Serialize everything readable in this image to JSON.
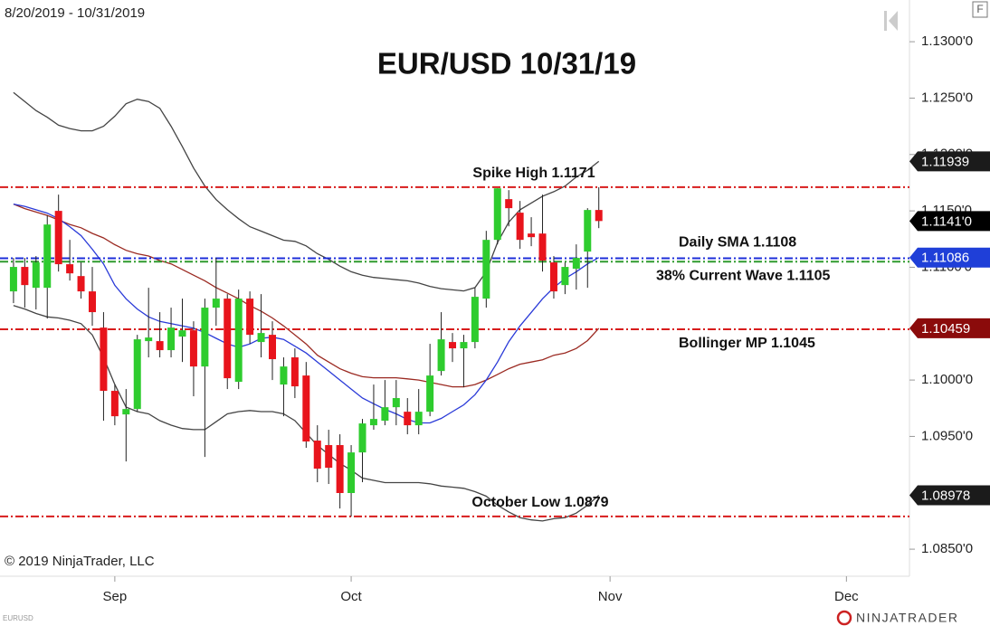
{
  "chart_data": {
    "type": "candlestick",
    "title": "EUR/USD 10/31/19",
    "date_range": "8/20/2019 - 10/31/2019",
    "copyright": "© 2019 NinjaTrader, LLC",
    "symbol": "EURUSD",
    "brand": "NINJATRADER",
    "corner_button": "F",
    "up_color": "#2ecc2e",
    "down_color": "#e8141c",
    "wick_color": "#222222",
    "ylim": [
      1.0826,
      1.1337
    ],
    "yticks": [
      {
        "value": 1.13,
        "label": "1.1300'0"
      },
      {
        "value": 1.125,
        "label": "1.1250'0"
      },
      {
        "value": 1.12,
        "label": "1.1200'0"
      },
      {
        "value": 1.115,
        "label": "1.1150'0"
      },
      {
        "value": 1.11,
        "label": "1.1100'0"
      },
      {
        "value": 1.1,
        "label": "1.1000'0"
      },
      {
        "value": 1.095,
        "label": "1.0950'0"
      },
      {
        "value": 1.085,
        "label": "1.0850'0"
      }
    ],
    "xlim": [
      -1.2,
      79.6
    ],
    "xticks": [
      {
        "value": 9,
        "label": "Sep"
      },
      {
        "value": 30,
        "label": "Oct"
      },
      {
        "value": 53,
        "label": "Nov"
      },
      {
        "value": 74,
        "label": "Dec"
      }
    ],
    "ohlc": {
      "open": [
        1.10786,
        1.11003,
        1.10818,
        1.10818,
        1.115,
        1.11027,
        1.10922,
        1.10786,
        1.10465,
        1.09904,
        1.09695,
        1.09743,
        1.10345,
        1.10345,
        1.10265,
        1.10385,
        1.10441,
        1.1012,
        1.10642,
        1.10722,
        1.09984,
        1.10722,
        1.10337,
        1.10401,
        1.0996,
        1.10201,
        1.1004,
        1.09463,
        1.09423,
        1.09423,
        1.08998,
        1.09358,
        1.09599,
        1.09639,
        1.09759,
        1.09719,
        1.09599,
        1.09719,
        1.1008,
        1.10337,
        1.10281,
        1.10337,
        1.10722,
        1.11243,
        1.11604,
        1.11484,
        1.11299,
        1.11299,
        1.11043,
        1.10842,
        1.10987,
        1.11139,
        1.11508
      ],
      "high": [
        1.11083,
        1.11083,
        1.11099,
        1.1146,
        1.11644,
        1.11243,
        1.11043,
        1.11003,
        1.10602,
        1.0996,
        1.0992,
        1.10401,
        1.10818,
        1.10602,
        1.10642,
        1.10722,
        1.10521,
        1.10722,
        1.11083,
        1.10762,
        1.10802,
        1.10786,
        1.10762,
        1.10521,
        1.10201,
        1.10281,
        1.1016,
        1.09599,
        1.09559,
        1.09519,
        1.09423,
        1.09655,
        1.0996,
        1.1,
        1.1,
        1.0984,
        1.0992,
        1.10321,
        1.10602,
        1.10417,
        1.10401,
        1.10818,
        1.11323,
        1.117,
        1.11684,
        1.11588,
        1.11444,
        1.11644,
        1.11099,
        1.11043,
        1.11203,
        1.11524,
        1.1171
      ],
      "low": [
        1.10682,
        1.10642,
        1.10626,
        1.10545,
        1.10962,
        1.10882,
        1.10722,
        1.10481,
        1.09639,
        1.09599,
        1.09278,
        1.09719,
        1.10201,
        1.10201,
        1.10201,
        1.1016,
        1.09856,
        1.09318,
        1.10481,
        1.0992,
        1.0992,
        1.10321,
        1.10201,
        1.1,
        1.09679,
        1.0984,
        1.09399,
        1.09094,
        1.09078,
        1.08861,
        1.0879,
        1.09094,
        1.09559,
        1.09599,
        1.09599,
        1.09519,
        1.09519,
        1.09679,
        1.1004,
        1.1016,
        1.09936,
        1.10281,
        1.10642,
        1.11203,
        1.11363,
        1.11163,
        1.11187,
        1.10962,
        1.10722,
        1.10762,
        1.10802,
        1.10818,
        1.11347
      ],
      "close": [
        1.11003,
        1.10842,
        1.11043,
        1.11379,
        1.11027,
        1.10946,
        1.10786,
        1.10602,
        1.09904,
        1.09679,
        1.09743,
        1.10361,
        1.10377,
        1.10265,
        1.10465,
        1.10441,
        1.1012,
        1.10642,
        1.10722,
        1.10016,
        1.10722,
        1.10401,
        1.10417,
        1.10185,
        1.1012,
        1.09944,
        1.09455,
        1.09214,
        1.09222,
        1.08998,
        1.09358,
        1.09615,
        1.09655,
        1.09759,
        1.0984,
        1.09599,
        1.09719,
        1.1004,
        1.10361,
        1.10281,
        1.10337,
        1.10738,
        1.11243,
        1.117,
        1.11524,
        1.11243,
        1.11267,
        1.11059,
        1.10786,
        1.11003,
        1.11083,
        1.11508,
        1.1141
      ]
    },
    "lines": [
      {
        "color": "#444444",
        "values": [
          1.1255,
          1.1247,
          1.1239,
          1.1233,
          1.1226,
          1.1223,
          1.1221,
          1.1221,
          1.1225,
          1.1234,
          1.1245,
          1.1249,
          1.1247,
          1.1241,
          1.1225,
          1.1207,
          1.1188,
          1.1172,
          1.116,
          1.1151,
          1.1143,
          1.1136,
          1.1132,
          1.1128,
          1.1124,
          1.1123,
          1.1119,
          1.1112,
          1.1107,
          1.1101,
          1.1096,
          1.1093,
          1.1091,
          1.109,
          1.1089,
          1.1088,
          1.1086,
          1.1083,
          1.1081,
          1.108,
          1.1079,
          1.1082,
          1.1096,
          1.1122,
          1.114,
          1.1151,
          1.1157,
          1.1163,
          1.1167,
          1.1172,
          1.118,
          1.1186,
          1.11939
        ]
      },
      {
        "color": "#444444",
        "values": [
          1.1066,
          1.1063,
          1.1059,
          1.1056,
          1.1055,
          1.1053,
          1.105,
          1.104,
          1.102,
          1.0996,
          1.0976,
          1.0972,
          1.097,
          1.0964,
          1.096,
          1.0957,
          1.0956,
          1.0956,
          1.0963,
          1.097,
          1.0972,
          1.0973,
          1.0972,
          1.0972,
          1.097,
          1.0964,
          1.0953,
          1.0942,
          1.0934,
          1.0926,
          1.092,
          1.0913,
          1.0911,
          1.0909,
          1.0909,
          1.0909,
          1.0909,
          1.0908,
          1.0906,
          1.0905,
          1.0904,
          1.0901,
          1.0897,
          1.0889,
          1.0883,
          1.0878,
          1.0876,
          1.0875,
          1.0877,
          1.0878,
          1.0882,
          1.0889,
          1.08978
        ]
      },
      {
        "color": "#9b2a22",
        "values": [
          1.1156,
          1.1152,
          1.1149,
          1.1146,
          1.1142,
          1.1138,
          1.1135,
          1.113,
          1.1126,
          1.112,
          1.1115,
          1.1112,
          1.111,
          1.1106,
          1.1103,
          1.1098,
          1.1093,
          1.1088,
          1.1082,
          1.1077,
          1.1072,
          1.1066,
          1.1061,
          1.1055,
          1.1048,
          1.104,
          1.1032,
          1.1022,
          1.1016,
          1.101,
          1.1006,
          1.1003,
          1.1002,
          1.1002,
          1.1002,
          1.1001,
          1.1,
          1.0998,
          1.0996,
          1.0994,
          1.0994,
          1.0996,
          1.1,
          1.1005,
          1.101,
          1.1014,
          1.1016,
          1.1018,
          1.1022,
          1.1024,
          1.1028,
          1.1035,
          1.10459
        ]
      },
      {
        "color": "#2a3ad8",
        "values": [
          1.1156,
          1.1154,
          1.1151,
          1.1148,
          1.1143,
          1.1136,
          1.1128,
          1.1116,
          1.1103,
          1.1084,
          1.1072,
          1.1063,
          1.1056,
          1.1052,
          1.105,
          1.1048,
          1.1046,
          1.1042,
          1.1037,
          1.1032,
          1.1029,
          1.1032,
          1.1037,
          1.1038,
          1.1036,
          1.103,
          1.1024,
          1.1016,
          1.1008,
          1.1,
          1.0992,
          1.0984,
          1.0979,
          1.0974,
          1.097,
          1.0965,
          1.0962,
          1.0962,
          1.0966,
          1.0972,
          1.0978,
          1.0987,
          1.1,
          1.1016,
          1.1034,
          1.1048,
          1.106,
          1.1072,
          1.1082,
          1.109,
          1.1096,
          1.1103,
          1.11086
        ]
      }
    ],
    "reference_lines": [
      {
        "value": 1.1171,
        "color": "#d81c1c",
        "label": "Spike High 1.1171"
      },
      {
        "value": 1.1108,
        "color": "#1c2fd8",
        "label": "Daily SMA 1.1108"
      },
      {
        "value": 1.1105,
        "color": "#2e9a2e",
        "label": "38% Current Wave 1.1105"
      },
      {
        "value": 1.1045,
        "color": "#d81c1c",
        "label": "Bollinger MP 1.1045"
      },
      {
        "value": 1.0879,
        "color": "#d81c1c",
        "label": "October Low 1.0879"
      }
    ],
    "price_tags": [
      {
        "value": 1.11939,
        "label": "1.11939",
        "color": "#1b1b1b"
      },
      {
        "value": 1.1141,
        "label": "1.1141'0",
        "color": "#000000"
      },
      {
        "value": 1.11086,
        "label": "1.11086",
        "color": "#1f3fd8"
      },
      {
        "value": 1.10459,
        "label": "1.10459",
        "color": "#8b0b0b"
      },
      {
        "value": 1.08978,
        "label": "1.08978",
        "color": "#1b1b1b"
      }
    ]
  }
}
